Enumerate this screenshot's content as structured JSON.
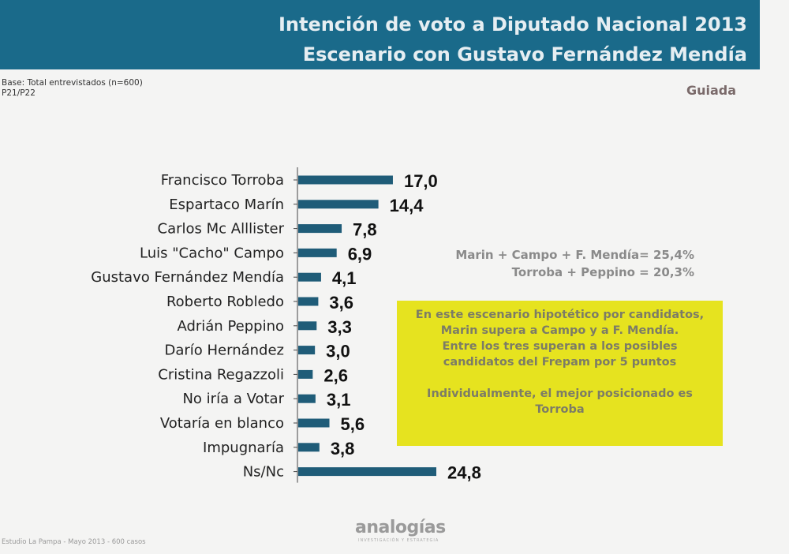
{
  "header": {
    "title_line1": "Intención de voto a Diputado Nacional 2013",
    "title_line2": "Escenario con Gustavo Fernández Mendía"
  },
  "base_line1": "Base: Total entrevistados (n=600)",
  "base_line2": "P21/P22",
  "tag": "Guiada",
  "sums": {
    "line1": "Marin + Campo +  F. Mendía= 25,4%",
    "line2": "Torroba  +  Peppino = 20,3%"
  },
  "callout": {
    "p1": "En este escenario hipotético por candidatos,  Marin supera a Campo y a F. Mendía.",
    "p2": "Entre los tres superan a los posibles candidatos del Frepam  por 5 puntos",
    "p3": "Individualmente, el mejor posicionado es Torroba"
  },
  "logo": "analogías",
  "logo_sub": "INVESTIGACIÓN Y ESTRATEGIA",
  "footer": "Estudio La Pampa - Mayo 2013 - 600 casos",
  "chart_data": {
    "type": "bar",
    "orientation": "horizontal",
    "title": "Intención de voto a Diputado Nacional 2013",
    "subtitle": "Escenario con Gustavo Fernández Mendía",
    "categories": [
      "Francisco Torroba",
      "Espartaco Marín",
      "Carlos Mc Alllister",
      "Luis \"Cacho\" Campo",
      "Gustavo Fernández Mendía",
      "Roberto Robledo",
      "Adrián Peppino",
      "Darío Hernández",
      "Cristina Regazzoli",
      "No iría a Votar",
      "Votaría en blanco",
      "Impugnaría",
      "Ns/Nc"
    ],
    "values": [
      17.0,
      14.4,
      7.8,
      6.9,
      4.1,
      3.6,
      3.3,
      3.0,
      2.6,
      3.1,
      5.6,
      3.8,
      24.8
    ],
    "value_labels": [
      "17,0",
      "14,4",
      "7,8",
      "6,9",
      "4,1",
      "3,6",
      "3,3",
      "3,0",
      "2,6",
      "3,1",
      "5,6",
      "3,8",
      "24,8"
    ],
    "bar_color": "#1f5c78",
    "xlim": [
      0,
      24.8
    ],
    "grid": false,
    "legend": "none"
  }
}
